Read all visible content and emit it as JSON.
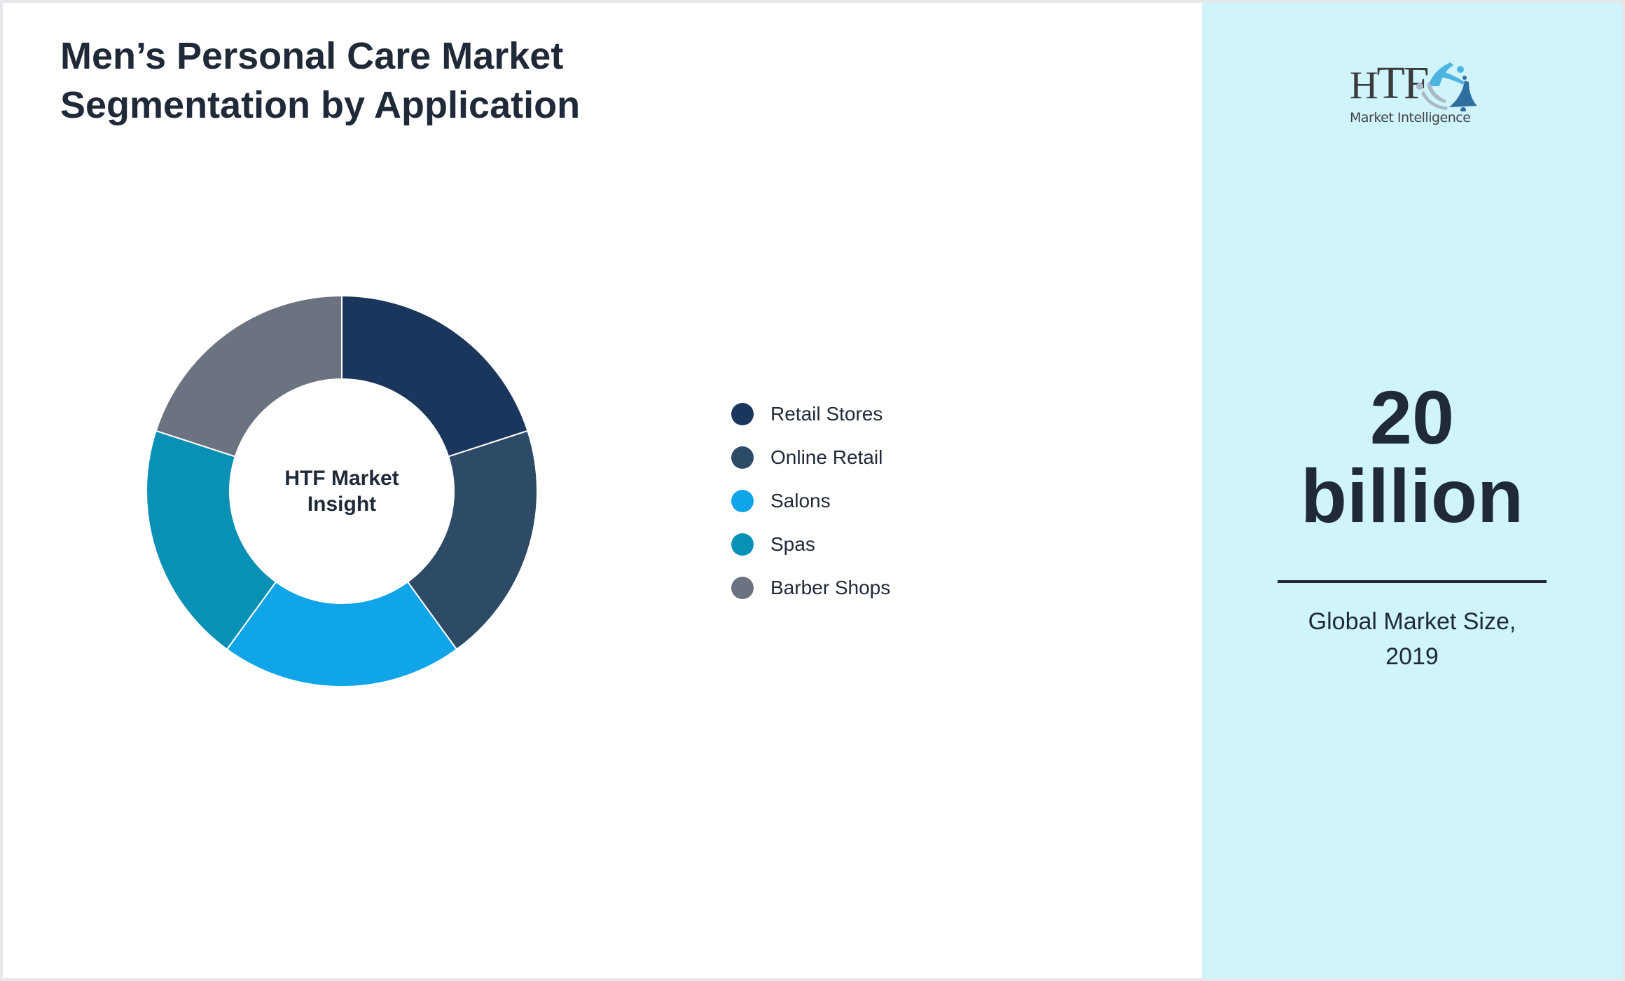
{
  "header": {
    "title_line1": "Men’s Personal Care Market",
    "title_line2": "Segmentation by Application"
  },
  "donut": {
    "center_line1": "HTF Market",
    "center_line2": "Insight"
  },
  "legend": [
    {
      "label": "Retail Stores",
      "color": "#1b365d"
    },
    {
      "label": "Online Retail",
      "color": "#2d4a66"
    },
    {
      "label": "Salons",
      "color": "#10a5e8"
    },
    {
      "label": "Spas",
      "color": "#0991b5"
    },
    {
      "label": "Barber Shops",
      "color": "#6b7280"
    }
  ],
  "logo": {
    "brand": "HTF",
    "brand_h": "H",
    "brand_tf": "TF",
    "tagline": "Market Intelligence"
  },
  "market_size": {
    "value_line1": "20",
    "value_line2": "billion",
    "caption_line1": "Global Market Size,",
    "caption_line2": "2019"
  },
  "colors": {
    "side_panel_bg": "#cff4fc",
    "text": "#1f2937",
    "border": "#e5e7eb"
  },
  "chart_data": {
    "type": "pie",
    "variant": "donut",
    "title": "Men’s Personal Care Market Segmentation by Application",
    "center_label": "HTF Market Insight",
    "categories": [
      "Retail Stores",
      "Online Retail",
      "Salons",
      "Spas",
      "Barber Shops"
    ],
    "values": [
      20,
      20,
      20,
      20,
      20
    ],
    "unit": "%",
    "colors": [
      "#1b365d",
      "#2d4a66",
      "#10a5e8",
      "#0991b5",
      "#6b7280"
    ],
    "start_angle": "top (12 o'clock), clockwise",
    "legend_position": "right"
  }
}
